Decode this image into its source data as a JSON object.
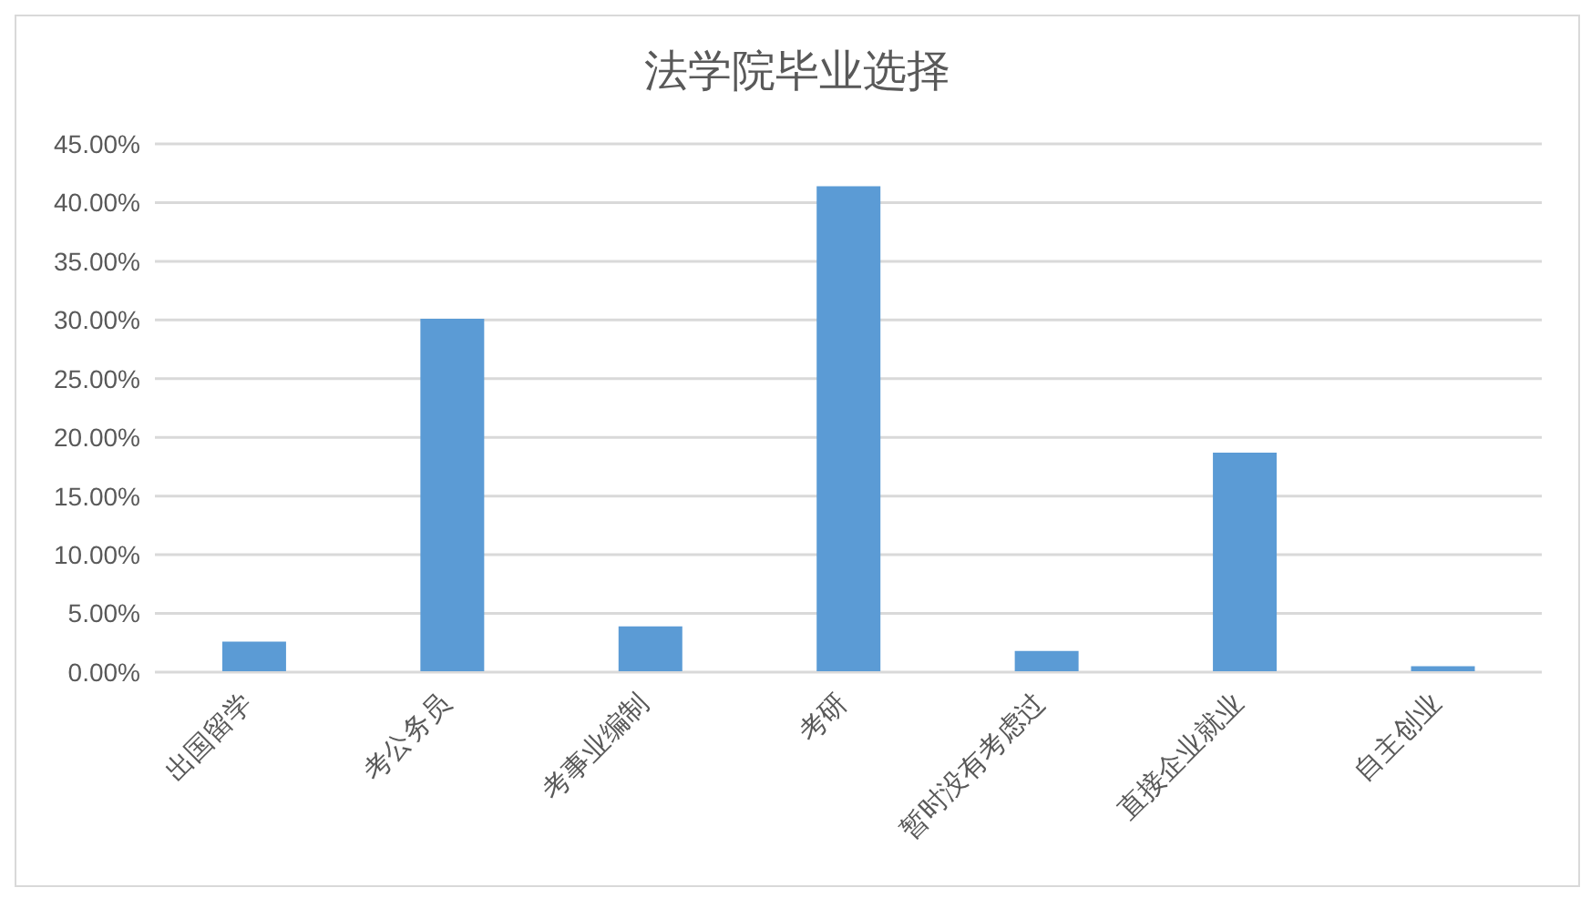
{
  "chart_data": {
    "type": "bar",
    "title": "法学院毕业选择",
    "categories": [
      "出国留学",
      "考公务员",
      "考事业编制",
      "考研",
      "暂时没有考虑过",
      "直接企业就业",
      "自主创业"
    ],
    "values": [
      2.6,
      30.1,
      3.9,
      41.4,
      1.8,
      18.7,
      0.5
    ],
    "color": "#5b9bd5",
    "ylim": [
      0,
      45
    ],
    "yticks": [
      {
        "value": 0,
        "label": "0.00%"
      },
      {
        "value": 5,
        "label": "5.00%"
      },
      {
        "value": 10,
        "label": "10.00%"
      },
      {
        "value": 15,
        "label": "15.00%"
      },
      {
        "value": 20,
        "label": "20.00%"
      },
      {
        "value": 25,
        "label": "25.00%"
      },
      {
        "value": 30,
        "label": "30.00%"
      },
      {
        "value": 35,
        "label": "35.00%"
      },
      {
        "value": 40,
        "label": "40.00%"
      },
      {
        "value": 45,
        "label": "45.00%"
      }
    ],
    "grid": "y",
    "legend": false
  }
}
